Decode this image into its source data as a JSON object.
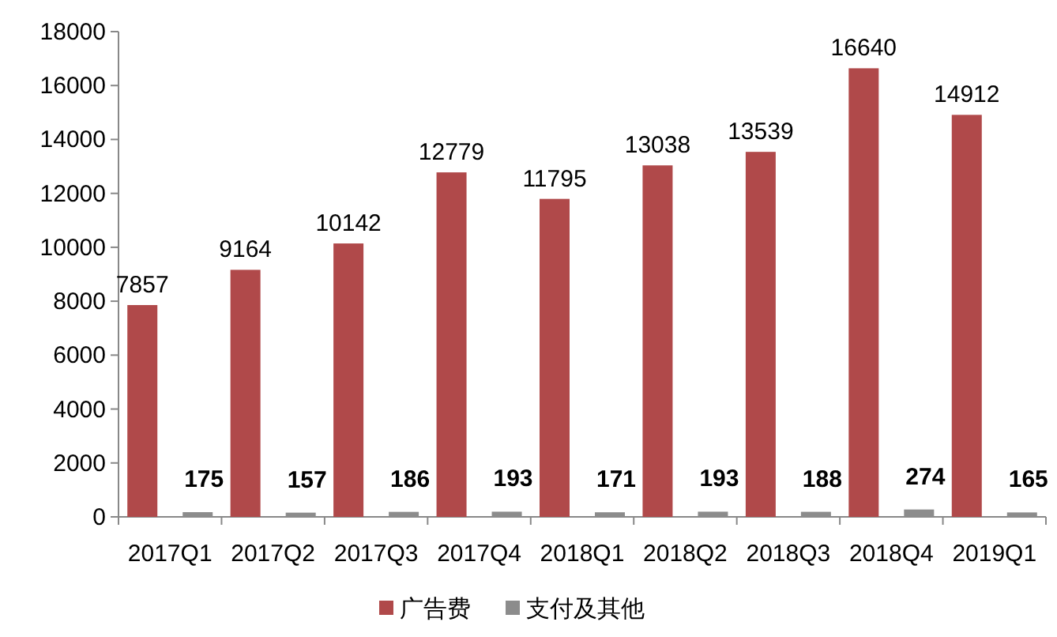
{
  "chart_data": {
    "type": "bar",
    "categories": [
      "2017Q1",
      "2017Q2",
      "2017Q3",
      "2017Q4",
      "2018Q1",
      "2018Q2",
      "2018Q3",
      "2018Q4",
      "2019Q1"
    ],
    "series": [
      {
        "name": "广告费",
        "color": "#b0494a",
        "values": [
          7857,
          9164,
          10142,
          12779,
          11795,
          13038,
          13539,
          16640,
          14912
        ]
      },
      {
        "name": "支付及其他",
        "color": "#8c8c8c",
        "values": [
          175,
          157,
          186,
          193,
          171,
          193,
          188,
          274,
          165
        ]
      }
    ],
    "ylim": [
      0,
      18000
    ],
    "yticks": [
      0,
      2000,
      4000,
      6000,
      8000,
      10000,
      12000,
      14000,
      16000,
      18000
    ],
    "data_labels": true,
    "grid": false,
    "legend": "bottom"
  }
}
